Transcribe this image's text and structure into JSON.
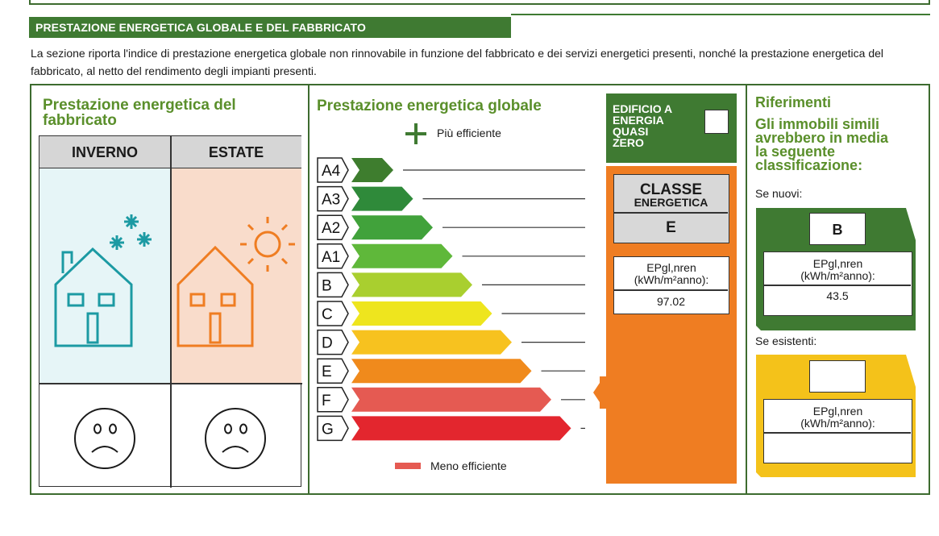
{
  "section": {
    "title": "PRESTAZIONE ENERGETICA GLOBALE E DEL FABBRICATO",
    "intro": "La sezione riporta l'indice di prestazione energetica globale non rinnovabile in funzione del fabbricato e dei servizi energetici presenti, nonché la prestazione energetica del fabbricato, al netto del rendimento degli impianti presenti."
  },
  "fabbricato": {
    "title_line1": "Prestazione energetica del",
    "title_line2": "fabbricato",
    "winter_label": "INVERNO",
    "summer_label": "ESTATE"
  },
  "globale": {
    "title": "Prestazione energetica globale",
    "more_efficient": "Più efficiente",
    "less_efficient": "Meno efficiente",
    "classes": [
      {
        "label": "A4",
        "color": "#3e7d2e"
      },
      {
        "label": "A3",
        "color": "#2f8a3a"
      },
      {
        "label": "A2",
        "color": "#41a23b"
      },
      {
        "label": "A1",
        "color": "#5fb83a"
      },
      {
        "label": "B",
        "color": "#a9cf2f"
      },
      {
        "label": "C",
        "color": "#eee51e"
      },
      {
        "label": "D",
        "color": "#f7c21f"
      },
      {
        "label": "E",
        "color": "#f08a1c"
      },
      {
        "label": "F",
        "color": "#e55a52"
      },
      {
        "label": "G",
        "color": "#e3262e"
      }
    ],
    "nzeb_line1": "EDIFICIO A",
    "nzeb_line2": "ENERGIA",
    "nzeb_line3": "QUASI",
    "nzeb_line4": "ZERO",
    "classe_line1": "CLASSE",
    "classe_line2": "ENERGETICA",
    "classe_value": "E",
    "ep_line1": "EPgl,nren",
    "ep_line2": "(kWh/m²anno):",
    "ep_value": "97.02",
    "indicator_class": "E"
  },
  "riferimenti": {
    "title": "Riferimenti",
    "subtitle_line1": "Gli immobili simili",
    "subtitle_line2": "avrebbero in media",
    "subtitle_line3": "la seguente",
    "subtitle_line4": "classificazione:",
    "nuovi_label": "Se nuovi:",
    "nuovi_class": "B",
    "nuovi_ep_line1": "EPgl,nren",
    "nuovi_ep_line2": "(kWh/m²anno):",
    "nuovi_ep_value": "43.5",
    "esistenti_label": "Se esistenti:",
    "esistenti_class": "",
    "esistenti_ep_line1": "EPgl,nren",
    "esistenti_ep_line2": "(kWh/m²anno):",
    "esistenti_ep_value": ""
  },
  "colors": {
    "frame_green": "#3d6b2f",
    "title_green": "#5a8f2b",
    "nzeb_green": "#3f7a32",
    "orange_panel": "#ef7d22",
    "winter_teal": "#1c9aa3",
    "summer_orange": "#ef7d22"
  }
}
